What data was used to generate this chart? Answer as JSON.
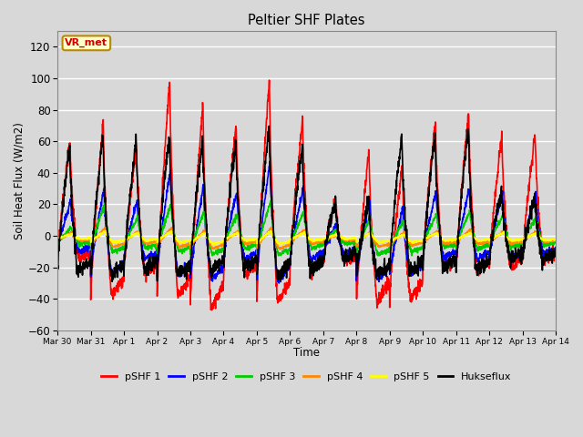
{
  "title": "Peltier SHF Plates",
  "xlabel": "Time",
  "ylabel": "Soil Heat Flux (W/m2)",
  "ylim": [
    -60,
    130
  ],
  "yticks": [
    -60,
    -40,
    -20,
    0,
    20,
    40,
    60,
    80,
    100,
    120
  ],
  "annotation_text": "VR_met",
  "annotation_color": "#cc0000",
  "annotation_bg": "#ffffcc",
  "annotation_border": "#bb8800",
  "fig_bg": "#d8d8d8",
  "plot_bg": "#d8d8d8",
  "series": [
    {
      "name": "pSHF 1",
      "color": "#ff0000",
      "lw": 1.2
    },
    {
      "name": "pSHF 2",
      "color": "#0000ff",
      "lw": 1.2
    },
    {
      "name": "pSHF 3",
      "color": "#00cc00",
      "lw": 1.2
    },
    {
      "name": "pSHF 4",
      "color": "#ff8800",
      "lw": 1.2
    },
    {
      "name": "pSHF 5",
      "color": "#ffff00",
      "lw": 1.2
    },
    {
      "name": "Hukseflux",
      "color": "#000000",
      "lw": 1.2
    }
  ],
  "x_tick_labels": [
    "Mar 30",
    "Mar 31",
    "Apr 1",
    "Apr 2",
    "Apr 3",
    "Apr 4",
    "Apr 5",
    "Apr 6",
    "Apr 7",
    "Apr 8",
    "Apr 9",
    "Apr 10",
    "Apr 11",
    "Apr 12",
    "Apr 13",
    "Apr 14"
  ],
  "n_days": 15,
  "pts_per_day": 144,
  "day_peaks_shf1": [
    60,
    73,
    58,
    100,
    85,
    72,
    100,
    75,
    25,
    55,
    45,
    73,
    80,
    65,
    65
  ],
  "day_troughs_shf1": [
    -15,
    -38,
    -24,
    -38,
    -45,
    -25,
    -42,
    -22,
    -17,
    -42,
    -40,
    -20,
    -22,
    -20,
    -15
  ],
  "day_peaks_shf2": [
    22,
    30,
    22,
    42,
    32,
    28,
    48,
    30,
    8,
    22,
    18,
    28,
    30,
    28,
    28
  ],
  "day_troughs_shf2": [
    -10,
    -25,
    -15,
    -25,
    -28,
    -15,
    -28,
    -15,
    -12,
    -28,
    -25,
    -14,
    -15,
    -14,
    -12
  ],
  "day_peaks_shf3": [
    5,
    20,
    12,
    20,
    16,
    14,
    22,
    15,
    4,
    12,
    10,
    14,
    16,
    14,
    12
  ],
  "day_troughs_shf3": [
    -5,
    -10,
    -8,
    -10,
    -12,
    -8,
    -12,
    -8,
    -5,
    -12,
    -10,
    -7,
    -8,
    -7,
    -6
  ],
  "day_peaks_shf4": [
    2,
    5,
    3,
    5,
    4,
    3,
    5,
    4,
    1,
    3,
    2,
    3,
    4,
    3,
    3
  ],
  "day_troughs_shf4": [
    -3,
    -7,
    -5,
    -7,
    -8,
    -5,
    -8,
    -5,
    -3,
    -7,
    -6,
    -5,
    -5,
    -5,
    -4
  ],
  "day_peaks_shf5": [
    1,
    3,
    2,
    3,
    2,
    2,
    3,
    2,
    1,
    2,
    1,
    2,
    2,
    2,
    2
  ],
  "day_troughs_shf5": [
    -2,
    -4,
    -3,
    -4,
    -5,
    -3,
    -5,
    -3,
    -2,
    -4,
    -4,
    -3,
    -3,
    -3,
    -3
  ],
  "day_peaks_huk": [
    58,
    65,
    62,
    65,
    62,
    60,
    70,
    58,
    22,
    24,
    65,
    65,
    70,
    30,
    25
  ],
  "day_troughs_huk": [
    -22,
    -25,
    -22,
    -25,
    -22,
    -20,
    -25,
    -22,
    -15,
    -25,
    -22,
    -20,
    -22,
    -15,
    -15
  ]
}
